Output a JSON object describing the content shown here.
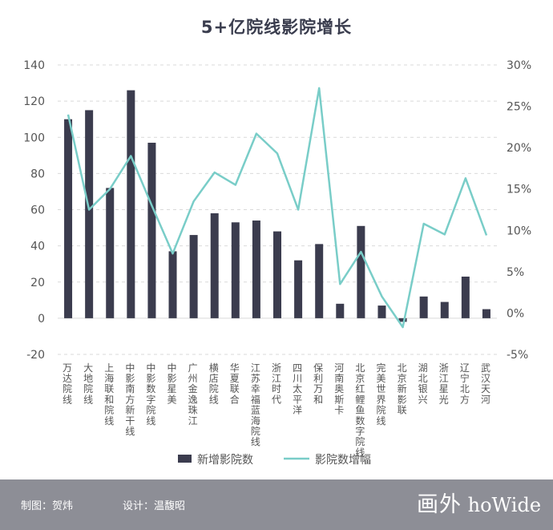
{
  "title": "5+亿院线影院增长",
  "footer": {
    "credit_chart": "制图：贺炜",
    "credit_design": "设计：温馥昭",
    "brand_cn": "画外",
    "brand_en": "hoWide"
  },
  "colors": {
    "bar": "#3b3c4e",
    "line": "#79cdc8",
    "grid": "#d9d9d9",
    "text": "#555555",
    "footer_bg": "#8d8e96"
  },
  "chart_data": {
    "type": "bar",
    "title": "5+亿院线影院增长",
    "categories": [
      "万达院线",
      "大地院线",
      "上海联和院线",
      "中影南方新干线",
      "中影数字院线",
      "中影星美",
      "广州金逸珠江",
      "横店院线",
      "华夏联合",
      "江苏幸福蓝海院线",
      "浙江时代",
      "四川太平洋",
      "保利万和",
      "河南奥斯卡",
      "北京红鲤鱼数字院线",
      "完美世界院线",
      "北京新影联",
      "湖北银兴",
      "浙江星光",
      "辽宁北方",
      "武汉天河"
    ],
    "series": [
      {
        "name": "新增影院数",
        "type": "bar",
        "axis": "left",
        "values": [
          110,
          115,
          72,
          126,
          97,
          37,
          46,
          58,
          53,
          54,
          48,
          32,
          41,
          8,
          51,
          7,
          -2,
          12,
          9,
          23,
          5
        ]
      },
      {
        "name": "影院数增幅",
        "type": "line",
        "axis": "right",
        "values": [
          24.0,
          12.5,
          15.0,
          19.0,
          13.0,
          7.2,
          13.5,
          17.0,
          15.5,
          21.7,
          19.3,
          12.5,
          27.2,
          3.5,
          7.4,
          2.0,
          -1.7,
          10.8,
          9.5,
          16.3,
          9.4
        ]
      }
    ],
    "y_left": {
      "min": -20,
      "max": 140,
      "ticks": [
        "-20",
        "0",
        "20",
        "40",
        "60",
        "80",
        "100",
        "120",
        "140"
      ]
    },
    "y_right": {
      "min": -5,
      "max": 30,
      "ticks": [
        "-5%",
        "0%",
        "5%",
        "10%",
        "15%",
        "20%",
        "25%",
        "30%"
      ]
    },
    "grid": "horizontal-dashed",
    "legend_position": "bottom"
  }
}
